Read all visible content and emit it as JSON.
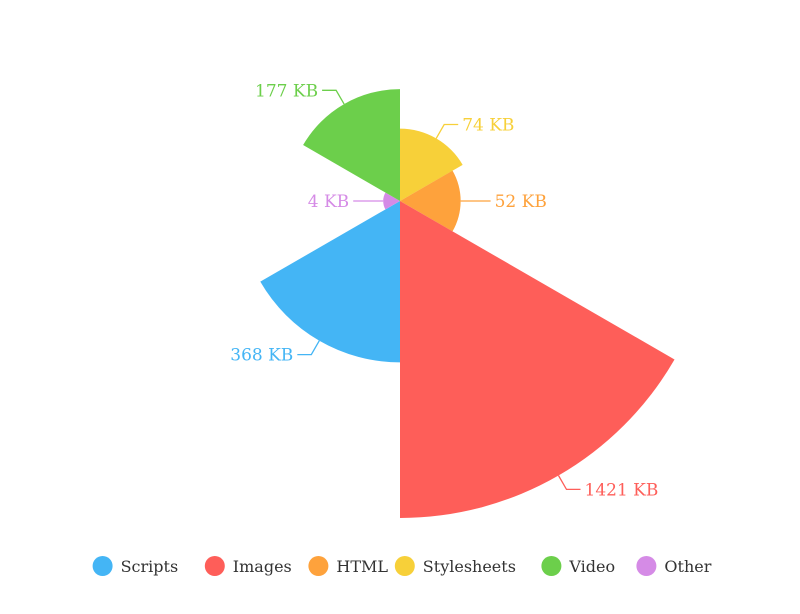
{
  "chart_data": {
    "type": "pie",
    "variant": "variable-radius",
    "legend_position": "bottom",
    "unit": "KB",
    "series": [
      {
        "name": "Scripts",
        "value": 368,
        "label": "368 KB",
        "color": "#44b5f5"
      },
      {
        "name": "Images",
        "value": 1421,
        "label": "1421 KB",
        "color": "#fe5e59"
      },
      {
        "name": "HTML",
        "value": 52,
        "label": "52 KB",
        "color": "#fea23c"
      },
      {
        "name": "Stylesheets",
        "value": 74,
        "label": "74 KB",
        "color": "#f7d039"
      },
      {
        "name": "Video",
        "value": 177,
        "label": "177 KB",
        "color": "#6ccf4b"
      },
      {
        "name": "Other",
        "value": 4,
        "label": "4 KB",
        "color": "#d58be6"
      }
    ]
  }
}
